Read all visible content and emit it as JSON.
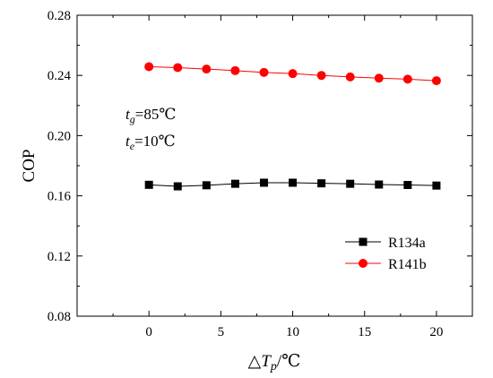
{
  "chart_data": {
    "type": "line",
    "xlabel_prefix": "△",
    "xlabel_var": "T",
    "xlabel_sub": "p",
    "xlabel_unit": "/℃",
    "ylabel": "COP",
    "xlim": [
      -5,
      22.5
    ],
    "ylim": [
      0.08,
      0.28
    ],
    "xticks": [
      0,
      5,
      10,
      15,
      20
    ],
    "yticks": [
      0.08,
      0.12,
      0.16,
      0.2,
      0.24,
      0.28
    ],
    "x": [
      0,
      2,
      4,
      6,
      8,
      10,
      12,
      14,
      16,
      18,
      20
    ],
    "series": [
      {
        "name": "R134a",
        "color": "#000000",
        "marker": "square",
        "values": [
          0.1673,
          0.1663,
          0.167,
          0.168,
          0.1687,
          0.1687,
          0.1683,
          0.168,
          0.1675,
          0.1672,
          0.1668
        ]
      },
      {
        "name": "R141b",
        "color": "#ff0000",
        "marker": "circle",
        "values": [
          0.2458,
          0.2452,
          0.2442,
          0.2432,
          0.242,
          0.2412,
          0.24,
          0.239,
          0.2382,
          0.2375,
          0.2365
        ]
      }
    ],
    "annotations": [
      {
        "var": "t",
        "sub": "g",
        "text": "=85℃"
      },
      {
        "var": "t",
        "sub": "e",
        "text": "=10℃"
      }
    ],
    "legend": "middle-right",
    "grid": false
  }
}
